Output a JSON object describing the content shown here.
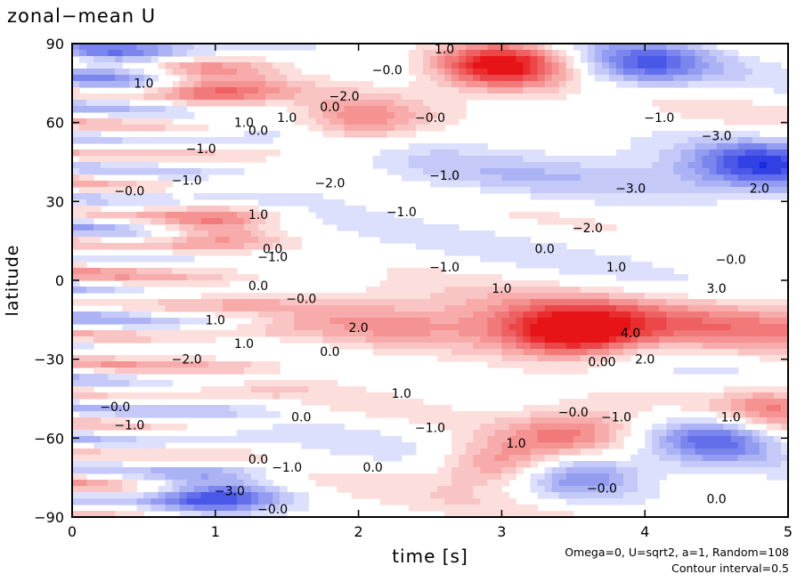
{
  "chart_data": {
    "type": "contour",
    "title": "zonal−mean U",
    "xlabel": "time [s]",
    "ylabel": "latitude",
    "xlim": [
      0,
      5
    ],
    "ylim": [
      -90,
      90
    ],
    "x_ticks": [
      "0",
      "1",
      "2",
      "3",
      "4",
      "5"
    ],
    "y_ticks": [
      "90",
      "60",
      "30",
      "0",
      "−30",
      "−60",
      "−90"
    ],
    "x_tick_values": [
      0,
      1,
      2,
      3,
      4,
      5
    ],
    "y_tick_values": [
      90,
      60,
      30,
      0,
      -30,
      -60,
      -90
    ],
    "annotation_params": "Omega=0, U=sqrt2, a=1, Random=108",
    "annotation_interval": "Contour interval=0.5",
    "contour_interval": 0.5,
    "colors": {
      "positive": "#e8413c",
      "negative": "#2f48d8",
      "zero": "#ffffff"
    },
    "features": [
      {
        "type": "max",
        "t": 3.0,
        "lat": 82,
        "value": 5.0
      },
      {
        "type": "max",
        "t": 3.5,
        "lat": -20,
        "value": 4.5
      },
      {
        "type": "max",
        "t": 1.0,
        "lat": 20,
        "value": 2.5
      },
      {
        "type": "max",
        "t": 1.0,
        "lat": 72,
        "value": 2.5
      },
      {
        "type": "max",
        "t": 2.0,
        "lat": 60,
        "value": 2.5
      },
      {
        "type": "max",
        "t": 3.0,
        "lat": -70,
        "value": 3.0
      },
      {
        "type": "max",
        "t": 3.5,
        "lat": -58,
        "value": 2.5
      },
      {
        "type": "max",
        "t": 4.9,
        "lat": -48,
        "value": 2.5
      },
      {
        "type": "min",
        "t": 4.8,
        "lat": 45,
        "value": -3.0
      },
      {
        "type": "min",
        "t": 4.5,
        "lat": -60,
        "value": -3.5
      },
      {
        "type": "min",
        "t": 1.0,
        "lat": -82,
        "value": -3.5
      },
      {
        "type": "min",
        "t": 0.3,
        "lat": 85,
        "value": -3.0
      },
      {
        "type": "min",
        "t": 4.0,
        "lat": 82,
        "value": -3.0
      },
      {
        "type": "min",
        "t": 3.5,
        "lat": -74,
        "value": -2.5
      }
    ],
    "contour_labels": [
      {
        "text": "1.0",
        "t": 2.6,
        "lat": 88
      },
      {
        "text": "−0.0",
        "t": 2.2,
        "lat": 80
      },
      {
        "text": "1.0",
        "t": 0.5,
        "lat": 75
      },
      {
        "text": "−2.0",
        "t": 1.9,
        "lat": 70
      },
      {
        "text": "0.0",
        "t": 1.8,
        "lat": 66
      },
      {
        "text": "1.0",
        "t": 1.5,
        "lat": 62
      },
      {
        "text": "1.0",
        "t": 1.2,
        "lat": 60
      },
      {
        "text": "0.0",
        "t": 1.3,
        "lat": 57
      },
      {
        "text": "−0.0",
        "t": 2.5,
        "lat": 62
      },
      {
        "text": "−1.0",
        "t": 0.9,
        "lat": 50
      },
      {
        "text": "−1.0",
        "t": 0.8,
        "lat": 38
      },
      {
        "text": "−0.0",
        "t": 0.4,
        "lat": 34
      },
      {
        "text": "−2.0",
        "t": 1.8,
        "lat": 37
      },
      {
        "text": "−1.0",
        "t": 2.3,
        "lat": 26
      },
      {
        "text": "−1.0",
        "t": 2.6,
        "lat": 40
      },
      {
        "text": "1.0",
        "t": 1.3,
        "lat": 25
      },
      {
        "text": "0.0",
        "t": 1.4,
        "lat": 12
      },
      {
        "text": "−1.0",
        "t": 1.4,
        "lat": 9
      },
      {
        "text": "−1.0",
        "t": 2.6,
        "lat": 5
      },
      {
        "text": "0.0",
        "t": 3.3,
        "lat": 12
      },
      {
        "text": "1.0",
        "t": 3.8,
        "lat": 5
      },
      {
        "text": "−2.0",
        "t": 3.6,
        "lat": 20
      },
      {
        "text": "−3.0",
        "t": 3.9,
        "lat": 35
      },
      {
        "text": "−3.0",
        "t": 4.5,
        "lat": 55
      },
      {
        "text": "−1.0",
        "t": 4.1,
        "lat": 62
      },
      {
        "text": "−0.0",
        "t": 4.6,
        "lat": 8
      },
      {
        "text": "3.0",
        "t": 4.5,
        "lat": -3
      },
      {
        "text": "2.0",
        "t": 4.8,
        "lat": 35
      },
      {
        "text": "1.0",
        "t": 3.0,
        "lat": -3
      },
      {
        "text": "2.0",
        "t": 2.0,
        "lat": -18
      },
      {
        "text": "0.0",
        "t": 1.3,
        "lat": -2
      },
      {
        "text": "−0.0",
        "t": 1.6,
        "lat": -7
      },
      {
        "text": "1.0",
        "t": 1.0,
        "lat": -15
      },
      {
        "text": "1.0",
        "t": 1.2,
        "lat": -24
      },
      {
        "text": "−2.0",
        "t": 0.8,
        "lat": -30
      },
      {
        "text": "0.0",
        "t": 1.8,
        "lat": -27
      },
      {
        "text": "4.0",
        "t": 3.9,
        "lat": -20
      },
      {
        "text": "0.00",
        "t": 3.7,
        "lat": -31
      },
      {
        "text": "2.0",
        "t": 4.0,
        "lat": -30
      },
      {
        "text": "1.0",
        "t": 2.3,
        "lat": -43
      },
      {
        "text": "0.0",
        "t": 1.6,
        "lat": -52
      },
      {
        "text": "−1.0",
        "t": 2.5,
        "lat": -56
      },
      {
        "text": "−0.0",
        "t": 3.5,
        "lat": -50
      },
      {
        "text": "−1.0",
        "t": 3.8,
        "lat": -52
      },
      {
        "text": "1.0",
        "t": 4.6,
        "lat": -52
      },
      {
        "text": "1.0",
        "t": 3.1,
        "lat": -62
      },
      {
        "text": "−0.0",
        "t": 0.3,
        "lat": -48
      },
      {
        "text": "−1.0",
        "t": 0.4,
        "lat": -55
      },
      {
        "text": "0.0",
        "t": 1.3,
        "lat": -68
      },
      {
        "text": "−1.0",
        "t": 1.5,
        "lat": -71
      },
      {
        "text": "0.0",
        "t": 2.1,
        "lat": -71
      },
      {
        "text": "−0.0",
        "t": 3.7,
        "lat": -79
      },
      {
        "text": "0.0",
        "t": 4.5,
        "lat": -83
      },
      {
        "text": "−3.0",
        "t": 1.1,
        "lat": -80
      },
      {
        "text": "−0.0",
        "t": 1.4,
        "lat": -87
      }
    ]
  }
}
